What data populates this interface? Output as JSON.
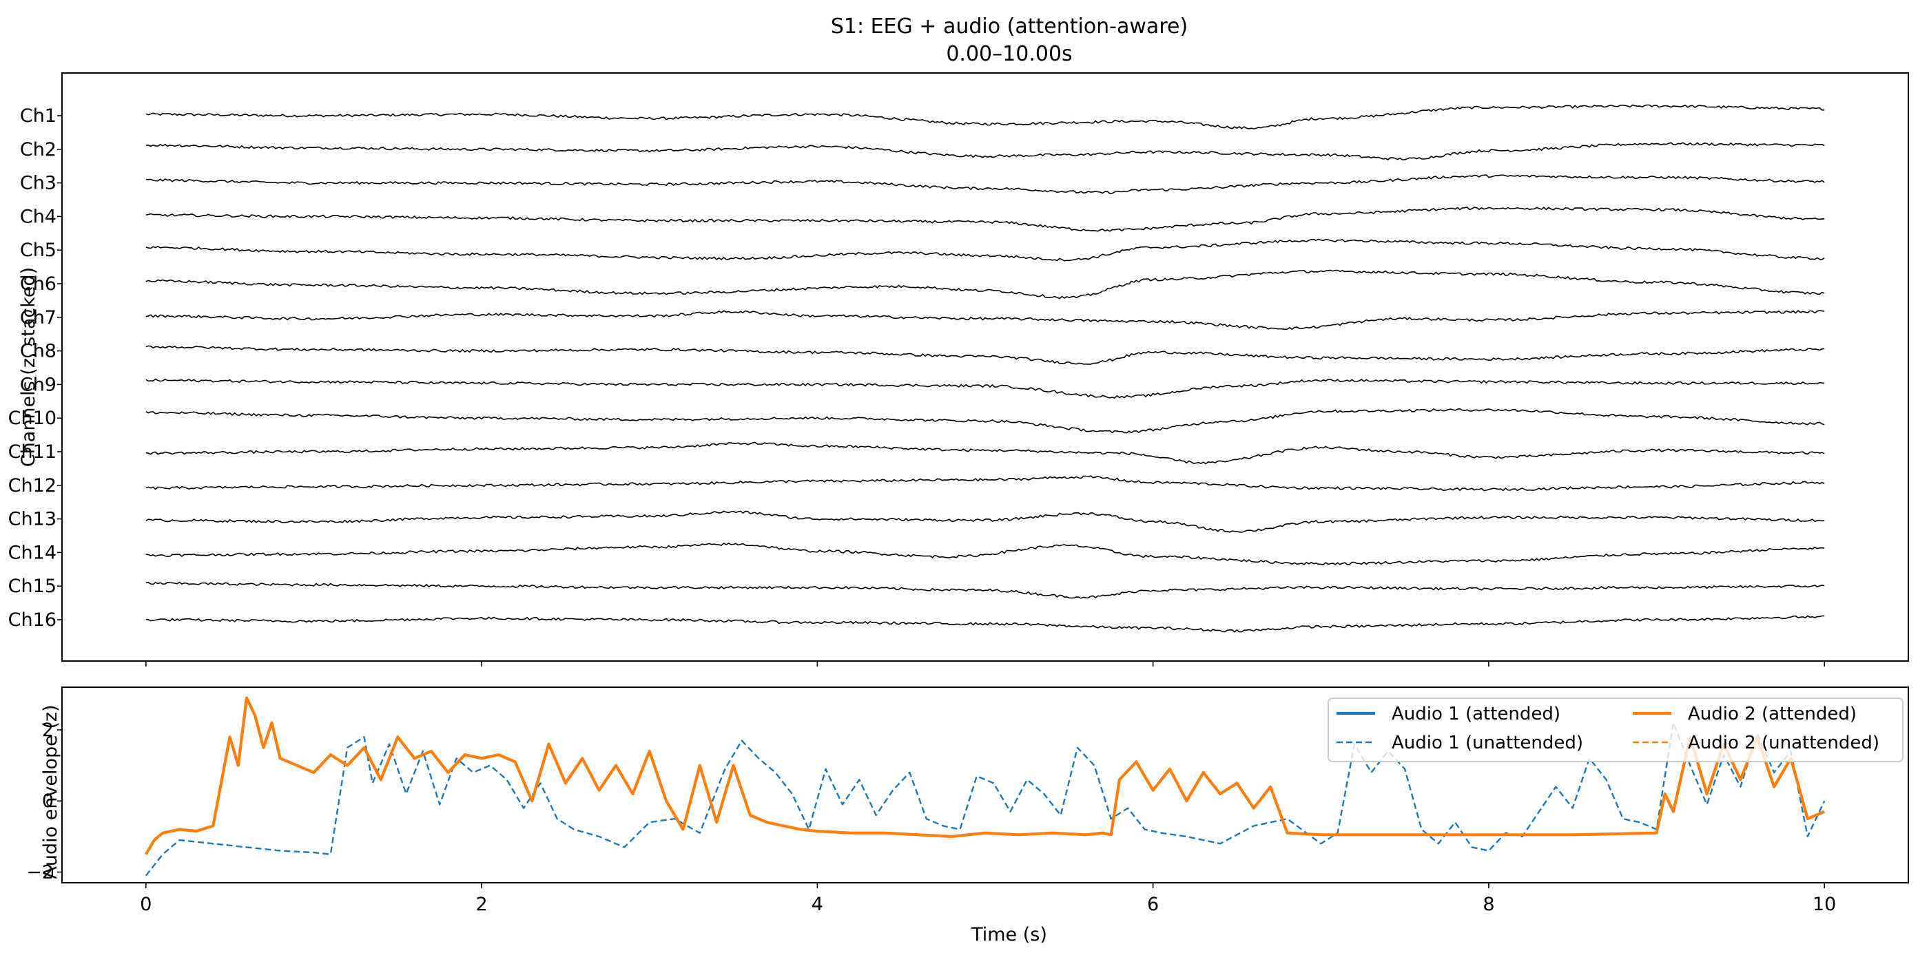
{
  "title_line1": "S1: EEG + audio (attention-aware)",
  "title_line2": "0.00–10.00s",
  "chart_data": [
    {
      "type": "line",
      "panel": "eeg",
      "ylabel": "Channels (z, stacked)",
      "xlim": [
        -0.5,
        10.5
      ],
      "xticks": [
        0,
        2,
        4,
        6,
        8,
        10
      ],
      "xtick_labels_shown": false,
      "line_color": "#000000",
      "channels": [
        {
          "name": "Ch1",
          "x": [
            0,
            1,
            2,
            3,
            4,
            5,
            6,
            6.6,
            7,
            8,
            9,
            10
          ],
          "y": [
            0.05,
            0,
            0.05,
            -0.1,
            0.05,
            -0.3,
            -0.2,
            -0.45,
            -0.1,
            0.3,
            0.35,
            0.25
          ]
        },
        {
          "name": "Ch2",
          "x": [
            0,
            1,
            2,
            3,
            4,
            5,
            5.5,
            6,
            7,
            7.5,
            8,
            9,
            10
          ],
          "y": [
            0.15,
            0.05,
            0,
            -0.05,
            0.1,
            -0.25,
            -0.2,
            -0.1,
            -0.2,
            -0.35,
            -0.05,
            0.2,
            0.15
          ]
        },
        {
          "name": "Ch3",
          "x": [
            0,
            1,
            2,
            3,
            4,
            5,
            5.7,
            6,
            7,
            8,
            9,
            10
          ],
          "y": [
            0.1,
            0,
            0,
            -0.05,
            0.05,
            -0.2,
            -0.35,
            -0.25,
            0,
            0.25,
            0.2,
            0.05
          ]
        },
        {
          "name": "Ch4",
          "x": [
            0,
            1,
            2,
            3,
            4,
            5,
            5.7,
            6.5,
            7,
            8,
            9,
            10
          ],
          "y": [
            0.05,
            0,
            -0.05,
            -0.15,
            -0.15,
            -0.2,
            -0.5,
            -0.25,
            0.1,
            0.3,
            0.25,
            -0.1
          ]
        },
        {
          "name": "Ch5",
          "x": [
            0,
            1,
            2,
            3.5,
            4.5,
            5,
            5.5,
            6,
            7,
            8,
            9,
            10
          ],
          "y": [
            0.1,
            -0.05,
            -0.15,
            -0.3,
            -0.1,
            -0.2,
            -0.35,
            0.1,
            0.35,
            0.25,
            0.05,
            -0.3
          ]
        },
        {
          "name": "Ch6",
          "x": [
            0,
            1,
            2,
            3,
            4.5,
            5,
            5.5,
            6,
            7,
            8,
            9,
            10
          ],
          "y": [
            0.1,
            -0.05,
            -0.15,
            -0.35,
            -0.1,
            -0.25,
            -0.5,
            0.15,
            0.45,
            0.35,
            0.05,
            -0.35
          ]
        },
        {
          "name": "Ch7",
          "x": [
            0,
            1,
            2,
            3,
            3.5,
            4,
            5,
            6,
            6.8,
            7.5,
            8,
            9,
            10
          ],
          "y": [
            0.05,
            -0.05,
            0.1,
            0.05,
            0.2,
            0.05,
            -0.05,
            -0.15,
            -0.4,
            -0.05,
            -0.1,
            0.15,
            0.2
          ]
        },
        {
          "name": "Ch8",
          "x": [
            0,
            1,
            2,
            3,
            4,
            5,
            5.6,
            6,
            7,
            8,
            9,
            10
          ],
          "y": [
            0.15,
            0.05,
            0,
            0.05,
            -0.05,
            -0.2,
            -0.45,
            -0.05,
            -0.25,
            -0.3,
            -0.1,
            0.05
          ]
        },
        {
          "name": "Ch9",
          "x": [
            0,
            1,
            2,
            3,
            4,
            5,
            5.8,
            6.5,
            7,
            8,
            9,
            10
          ],
          "y": [
            0.15,
            0.1,
            0.05,
            0,
            0,
            -0.05,
            -0.45,
            -0.05,
            0.15,
            0.1,
            0.05,
            0.05
          ]
        },
        {
          "name": "Ch10",
          "x": [
            0,
            1,
            2,
            3,
            4,
            5,
            5.8,
            6.5,
            7,
            8,
            9,
            10
          ],
          "y": [
            0.2,
            0.1,
            0,
            -0.05,
            0,
            -0.1,
            -0.5,
            -0.1,
            0.25,
            0.3,
            0.05,
            -0.2
          ]
        },
        {
          "name": "Ch11",
          "x": [
            0,
            1,
            2,
            3,
            3.6,
            4,
            5,
            5.8,
            6.3,
            7,
            7.5,
            8,
            9,
            10
          ],
          "y": [
            -0.05,
            0,
            0.1,
            0.15,
            0.3,
            0.2,
            0.05,
            -0.05,
            -0.4,
            0.15,
            0,
            -0.2,
            0.05,
            -0.05
          ]
        },
        {
          "name": "Ch12",
          "x": [
            0,
            1,
            2,
            3,
            4,
            5,
            5.6,
            6,
            7,
            8,
            9,
            10
          ],
          "y": [
            -0.1,
            -0.05,
            0,
            0.05,
            0.15,
            0.2,
            0.3,
            0.1,
            -0.1,
            -0.15,
            -0.05,
            0.1
          ]
        },
        {
          "name": "Ch13",
          "x": [
            0,
            1,
            2,
            3,
            3.5,
            4,
            5,
            5.6,
            6,
            6.5,
            7,
            8,
            9,
            10
          ],
          "y": [
            -0.05,
            -0.1,
            0.05,
            0.1,
            0.25,
            0,
            -0.05,
            0.2,
            -0.1,
            -0.45,
            -0.1,
            0.05,
            0.05,
            -0.05
          ]
        },
        {
          "name": "Ch14",
          "x": [
            0,
            1,
            2,
            3,
            3.5,
            4,
            4.8,
            5.5,
            6,
            7,
            8,
            9,
            10
          ],
          "y": [
            -0.1,
            -0.05,
            0.05,
            0.2,
            0.3,
            0.05,
            -0.15,
            0.25,
            -0.15,
            -0.4,
            -0.3,
            -0.05,
            0.15
          ]
        },
        {
          "name": "Ch15",
          "x": [
            0,
            1,
            2,
            3,
            4,
            5,
            5.6,
            6,
            7,
            8,
            9,
            10
          ],
          "y": [
            0.1,
            0.05,
            0,
            -0.05,
            -0.05,
            -0.15,
            -0.4,
            -0.15,
            -0.05,
            -0.1,
            -0.05,
            0
          ]
        },
        {
          "name": "Ch16",
          "x": [
            0,
            1,
            2,
            3,
            4,
            5,
            6,
            6.5,
            7,
            8,
            9,
            10
          ],
          "y": [
            0,
            -0.05,
            0.05,
            0,
            -0.1,
            -0.15,
            -0.3,
            -0.4,
            -0.25,
            -0.15,
            0,
            0.1
          ]
        }
      ]
    },
    {
      "type": "line",
      "panel": "audio",
      "xlabel": "Time (s)",
      "ylabel": "Audio envelope (z)",
      "xlim": [
        -0.5,
        10.5
      ],
      "ylim": [
        -2.3,
        3.2
      ],
      "xticks": [
        0,
        2,
        4,
        6,
        8,
        10
      ],
      "yticks": [
        -2,
        0,
        2
      ],
      "legend_position": "top-right",
      "legend_columns": 2,
      "series": [
        {
          "name": "Audio 1 (attended)",
          "color": "#1f77b4",
          "style": "solid",
          "x": [],
          "y": []
        },
        {
          "name": "Audio 1 (unattended)",
          "color": "#1f77b4",
          "style": "dashed",
          "x": [
            0,
            0.05,
            0.1,
            0.2,
            0.4,
            0.6,
            0.8,
            1.0,
            1.1,
            1.2,
            1.3,
            1.35,
            1.45,
            1.55,
            1.65,
            1.75,
            1.85,
            1.95,
            2.05,
            2.15,
            2.25,
            2.35,
            2.45,
            2.55,
            2.7,
            2.85,
            3.0,
            3.15,
            3.3,
            3.45,
            3.55,
            3.65,
            3.75,
            3.85,
            3.95,
            4.05,
            4.15,
            4.25,
            4.35,
            4.45,
            4.55,
            4.65,
            4.75,
            4.85,
            4.95,
            5.05,
            5.15,
            5.25,
            5.35,
            5.45,
            5.55,
            5.65,
            5.75,
            5.85,
            5.95,
            6.05,
            6.2,
            6.4,
            6.6,
            6.8,
            7.0,
            7.1,
            7.2,
            7.3,
            7.4,
            7.5,
            7.6,
            7.7,
            7.8,
            7.9,
            8.0,
            8.1,
            8.2,
            8.3,
            8.4,
            8.5,
            8.6,
            8.7,
            8.8,
            8.9,
            9.0,
            9.1,
            9.2,
            9.3,
            9.4,
            9.5,
            9.6,
            9.7,
            9.8,
            9.9,
            10.0
          ],
          "y": [
            -2.1,
            -1.8,
            -1.5,
            -1.1,
            -1.2,
            -1.3,
            -1.4,
            -1.45,
            -1.5,
            1.5,
            1.8,
            0.5,
            1.6,
            0.2,
            1.4,
            -0.1,
            1.2,
            0.8,
            1.0,
            0.6,
            -0.2,
            0.5,
            -0.5,
            -0.8,
            -1.0,
            -1.3,
            -0.6,
            -0.5,
            -0.9,
            0.9,
            1.7,
            1.2,
            0.8,
            0.2,
            -0.8,
            0.9,
            -0.1,
            0.6,
            -0.4,
            0.3,
            0.8,
            -0.5,
            -0.7,
            -0.8,
            0.7,
            0.5,
            -0.3,
            0.6,
            0.2,
            -0.4,
            1.5,
            1.0,
            -0.5,
            -0.2,
            -0.8,
            -0.9,
            -1.0,
            -1.2,
            -0.7,
            -0.5,
            -1.2,
            -0.9,
            1.6,
            0.8,
            1.4,
            0.9,
            -0.8,
            -1.2,
            -0.6,
            -1.3,
            -1.4,
            -0.9,
            -1.0,
            -0.3,
            0.4,
            -0.2,
            1.2,
            0.6,
            -0.5,
            -0.6,
            -0.8,
            2.2,
            1.0,
            -0.1,
            1.3,
            0.4,
            1.9,
            0.8,
            1.4,
            -1.0,
            0
          ]
        },
        {
          "name": "Audio 2 (attended)",
          "color": "#ff7f0e",
          "style": "solid",
          "x": [
            0,
            0.05,
            0.1,
            0.2,
            0.3,
            0.4,
            0.5,
            0.55,
            0.6,
            0.65,
            0.7,
            0.75,
            0.8,
            0.9,
            1.0,
            1.1,
            1.2,
            1.3,
            1.4,
            1.5,
            1.6,
            1.7,
            1.8,
            1.9,
            2.0,
            2.1,
            2.2,
            2.3,
            2.4,
            2.5,
            2.6,
            2.7,
            2.8,
            2.9,
            3.0,
            3.1,
            3.2,
            3.3,
            3.4,
            3.5,
            3.6,
            3.7,
            3.8,
            3.9,
            4.0,
            4.2,
            4.4,
            4.6,
            4.8,
            5.0,
            5.2,
            5.4,
            5.6,
            5.7,
            5.75,
            5.8,
            5.9,
            6.0,
            6.1,
            6.2,
            6.3,
            6.4,
            6.5,
            6.6,
            6.7,
            6.8,
            7.0,
            7.5,
            8.0,
            8.5,
            9.0,
            9.05,
            9.1,
            9.2,
            9.3,
            9.4,
            9.5,
            9.6,
            9.7,
            9.8,
            9.9,
            10.0
          ],
          "y": [
            -1.5,
            -1.1,
            -0.9,
            -0.8,
            -0.85,
            -0.7,
            1.8,
            1.0,
            2.9,
            2.4,
            1.5,
            2.2,
            1.2,
            1.0,
            0.8,
            1.3,
            1.0,
            1.5,
            0.6,
            1.8,
            1.2,
            1.4,
            0.8,
            1.3,
            1.2,
            1.3,
            1.1,
            0.0,
            1.6,
            0.5,
            1.2,
            0.3,
            1.0,
            0.2,
            1.4,
            0.0,
            -0.8,
            1.0,
            -0.6,
            1.0,
            -0.4,
            -0.6,
            -0.7,
            -0.8,
            -0.85,
            -0.9,
            -0.9,
            -0.95,
            -1.0,
            -0.9,
            -0.95,
            -0.9,
            -0.95,
            -0.9,
            -0.95,
            0.6,
            1.1,
            0.3,
            0.9,
            0.0,
            0.8,
            0.2,
            0.5,
            -0.2,
            0.4,
            -0.9,
            -0.95,
            -0.95,
            -0.95,
            -0.95,
            -0.9,
            0.2,
            -0.3,
            1.8,
            0.2,
            1.6,
            0.6,
            1.8,
            0.4,
            1.2,
            -0.5,
            -0.3
          ]
        },
        {
          "name": "Audio 2 (unattended)",
          "color": "#ff7f0e",
          "style": "dashed",
          "x": [],
          "y": []
        }
      ]
    }
  ]
}
